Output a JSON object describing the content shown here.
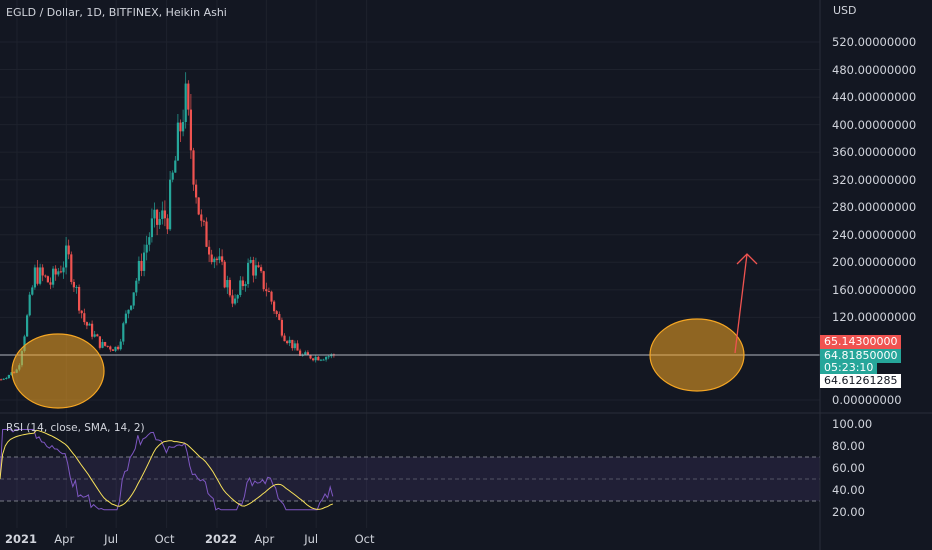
{
  "header": {
    "title": "EGLD / Dollar, 1D, BITFINEX, Heikin Ashi",
    "currency": "USD"
  },
  "rsi_header": {
    "title": "RSI (14, close, SMA, 14, 2)"
  },
  "price_badges": {
    "open": "65.14300000",
    "last": "64.81850000",
    "countdown": "05:23:10",
    "line": "64.61261285"
  },
  "colors": {
    "background": "#131722",
    "up": "#26a69a",
    "down": "#ef5350",
    "rsi": "#7e57c2",
    "rsi_ma": "#f7e15a",
    "highlight": "#f5a623",
    "arrow": "#ef5350"
  },
  "chart_data": [
    {
      "type": "candlestick",
      "title": "EGLD / Dollar, 1D, BITFINEX, Heikin Ashi",
      "y_axis_ticks": [
        "520.00000000",
        "480.00000000",
        "440.00000000",
        "400.00000000",
        "360.00000000",
        "320.00000000",
        "280.00000000",
        "240.00000000",
        "200.00000000",
        "160.00000000",
        "120.00000000",
        "0.00000000"
      ],
      "ylim": [
        0,
        550
      ],
      "x_axis_ticks": [
        "2021",
        "Apr",
        "Jul",
        "Oct",
        "2022",
        "Apr",
        "Jul",
        "Oct"
      ],
      "approx_close_path": [
        {
          "x": "2020-12",
          "y": 30
        },
        {
          "x": "2021-01",
          "y": 45
        },
        {
          "x": "2021-02",
          "y": 185
        },
        {
          "x": "2021-03",
          "y": 170
        },
        {
          "x": "2021-04",
          "y": 210
        },
        {
          "x": "2021-05",
          "y": 115
        },
        {
          "x": "2021-06",
          "y": 80
        },
        {
          "x": "2021-07",
          "y": 75
        },
        {
          "x": "2021-08",
          "y": 165
        },
        {
          "x": "2021-09",
          "y": 250
        },
        {
          "x": "2021-10",
          "y": 270
        },
        {
          "x": "2021-11",
          "y": 440
        },
        {
          "x": "2021-12",
          "y": 250
        },
        {
          "x": "2022-01",
          "y": 200
        },
        {
          "x": "2022-02",
          "y": 140
        },
        {
          "x": "2022-03",
          "y": 200
        },
        {
          "x": "2022-04",
          "y": 160
        },
        {
          "x": "2022-05",
          "y": 95
        },
        {
          "x": "2022-06",
          "y": 65
        },
        {
          "x": "2022-07",
          "y": 62
        },
        {
          "x": "2022-08",
          "y": 65
        }
      ],
      "horizontal_line": 64.61261285,
      "annotations": [
        "highlight-ellipse-early-2021",
        "highlight-ellipse-mid-2022",
        "upward-arrow"
      ]
    },
    {
      "type": "line",
      "title": "RSI (14, close, SMA, 14, 2)",
      "y_axis_ticks": [
        "100.00",
        "80.00",
        "60.00",
        "40.00",
        "20.00"
      ],
      "ylim": [
        20,
        100
      ],
      "band": [
        30,
        70
      ]
    }
  ]
}
